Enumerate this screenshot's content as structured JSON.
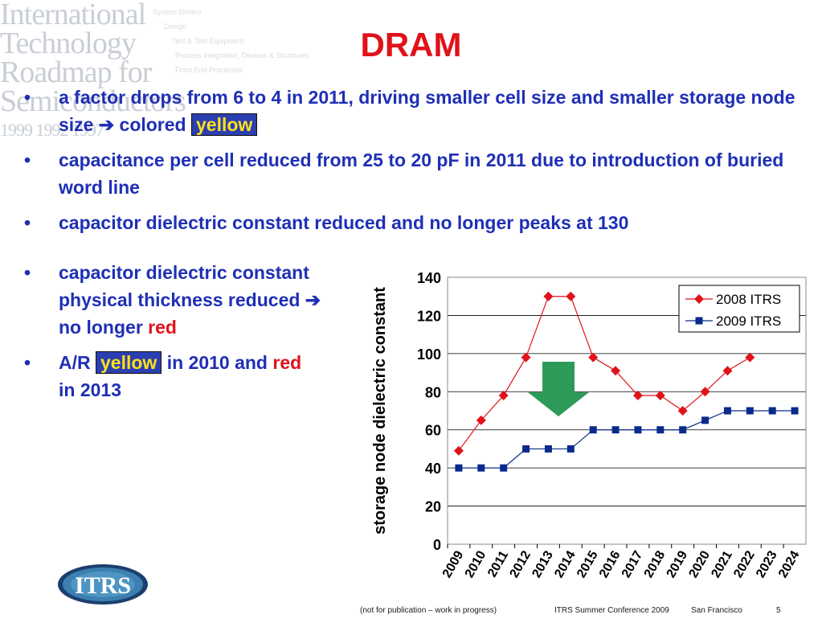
{
  "logo": {
    "lines": [
      "International",
      "Technology",
      "Roadmap for",
      "Semiconductors"
    ],
    "year_text": "1999 1992 1997",
    "ghost_menu": [
      "System Drivers",
      "Design",
      "Test & Test Equipment",
      "Process Integration, Devices & Structures",
      "Front End Processes"
    ]
  },
  "title": "DRAM",
  "bullets": [
    {
      "parts": [
        {
          "text": "a factor drops from 6 to 4 in 2011, driving smaller cell size and smaller storage node size ➔ colored ",
          "style": "normal"
        },
        {
          "text": "yellow",
          "style": "yellow"
        }
      ]
    },
    {
      "parts": [
        {
          "text": "capacitance per cell reduced from 25 to 20 pF in 2011 due to introduction of buried word line",
          "style": "normal"
        }
      ]
    },
    {
      "parts": [
        {
          "text": "capacitor dielectric constant reduced and no longer peaks at 130",
          "style": "normal"
        }
      ]
    }
  ],
  "left_bullets": [
    {
      "parts": [
        {
          "text": "capacitor dielectric constant physical thickness reduced ➔ no longer ",
          "style": "normal"
        },
        {
          "text": "red",
          "style": "red"
        }
      ]
    },
    {
      "parts": [
        {
          "text": "A/R ",
          "style": "normal"
        },
        {
          "text": "yellow",
          "style": "yellow"
        },
        {
          "text": " in 2010 and ",
          "style": "normal"
        },
        {
          "text": "red",
          "style": "red"
        },
        {
          "text": " in 2013",
          "style": "normal"
        }
      ]
    }
  ],
  "chart_data": {
    "type": "line",
    "ylabel": "storage node dielectric constant",
    "xlabel": "",
    "ylim": [
      0,
      140
    ],
    "yticks": [
      0,
      20,
      40,
      60,
      80,
      100,
      120,
      140
    ],
    "categories": [
      "2009",
      "2010",
      "2011",
      "2012",
      "2013",
      "2014",
      "2015",
      "2016",
      "2017",
      "2018",
      "2019",
      "2020",
      "2021",
      "2022",
      "2023",
      "2024"
    ],
    "legend_position": "top-right",
    "series": [
      {
        "name": "2008 ITRS",
        "color": "#e0121a",
        "marker": "diamond",
        "values": [
          49,
          65,
          78,
          98,
          130,
          130,
          98,
          91,
          78,
          78,
          70,
          80,
          91,
          98,
          null,
          null
        ]
      },
      {
        "name": "2009 ITRS",
        "color": "#0a2a8c",
        "marker": "square",
        "values": [
          40,
          40,
          40,
          50,
          50,
          50,
          60,
          60,
          60,
          60,
          60,
          65,
          70,
          70,
          70,
          70
        ]
      }
    ]
  },
  "footer": {
    "note": "(not for publication – work in progress)",
    "conference": "ITRS Summer Conference 2009",
    "city": "San Francisco",
    "page": "5"
  },
  "itrs_logo_text": "ITRS",
  "colors": {
    "title": "#e0121a",
    "body_text": "#1f2fb5",
    "highlight_bg": "#2b3fb0",
    "highlight_text": "#ffe11a",
    "arrow": "#2e9a5a"
  },
  "icons": {
    "arrow": "down-arrow-icon",
    "logo": "itrs-globe-logo"
  }
}
